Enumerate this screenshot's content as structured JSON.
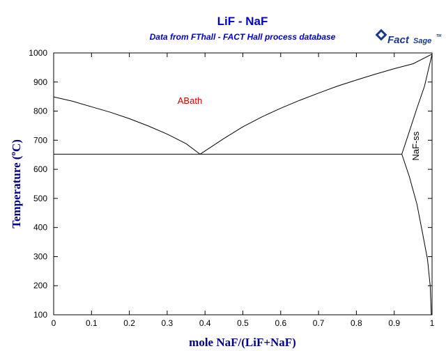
{
  "logo": {
    "word1": "Fact",
    "word2": "Sage",
    "mark": "TM",
    "color": "#1a3a8c"
  },
  "chart_data": {
    "type": "line",
    "title": "LiF - NaF",
    "subtitle": "Data from FThall - FACT Hall process database",
    "xlabel": "mole NaF/(LiF+NaF)",
    "ylabel_main": "Temperature (",
    "ylabel_sup": "o",
    "ylabel_end": "C)",
    "xlim": [
      0,
      1
    ],
    "ylim": [
      100,
      1000
    ],
    "x_ticks": [
      0,
      0.1,
      0.2,
      0.3,
      0.4,
      0.5,
      0.6,
      0.7,
      0.8,
      0.9,
      1
    ],
    "x_tick_labels": [
      "0",
      "0.1",
      "0.2",
      "0.3",
      "0.4",
      "0.5",
      "0.6",
      "0.7",
      "0.8",
      "0.9",
      "1"
    ],
    "y_ticks": [
      100,
      200,
      300,
      400,
      500,
      600,
      700,
      800,
      900,
      1000
    ],
    "y_tick_labels": [
      "100",
      "200",
      "300",
      "400",
      "500",
      "600",
      "700",
      "800",
      "900",
      "1000"
    ],
    "grid": false,
    "series": [
      {
        "points": [
          [
            0,
            849
          ],
          [
            0.05,
            834
          ],
          [
            0.1,
            815
          ],
          [
            0.15,
            796
          ],
          [
            0.2,
            774
          ],
          [
            0.25,
            749
          ],
          [
            0.3,
            721
          ],
          [
            0.35,
            688
          ],
          [
            0.387,
            652
          ]
        ]
      },
      {
        "points": [
          [
            0.387,
            652
          ],
          [
            0.45,
            706
          ],
          [
            0.5,
            746
          ],
          [
            0.55,
            780
          ],
          [
            0.6,
            810
          ],
          [
            0.65,
            837
          ],
          [
            0.7,
            862
          ],
          [
            0.75,
            886
          ],
          [
            0.8,
            907
          ],
          [
            0.85,
            927
          ],
          [
            0.9,
            946
          ],
          [
            0.95,
            963
          ],
          [
            1,
            996
          ]
        ]
      },
      {
        "points": [
          [
            0,
            652
          ],
          [
            0.92,
            652
          ]
        ]
      },
      {
        "points": [
          [
            0.92,
            652
          ],
          [
            0.94,
            730
          ],
          [
            0.96,
            810
          ],
          [
            0.98,
            885
          ],
          [
            1,
            996
          ]
        ]
      },
      {
        "points": [
          [
            0.92,
            652
          ],
          [
            0.94,
            575
          ],
          [
            0.96,
            480
          ],
          [
            0.975,
            380
          ],
          [
            0.988,
            290
          ],
          [
            0.995,
            200
          ],
          [
            0.998,
            100
          ]
        ]
      }
    ],
    "annotations": [
      {
        "text": "ABath",
        "x": 0.36,
        "y": 825,
        "color": "#cc0000",
        "rotation": 0
      },
      {
        "text": "NaF-ss",
        "x": 0.965,
        "y": 680,
        "color": "#000000",
        "rotation": -90
      }
    ]
  }
}
